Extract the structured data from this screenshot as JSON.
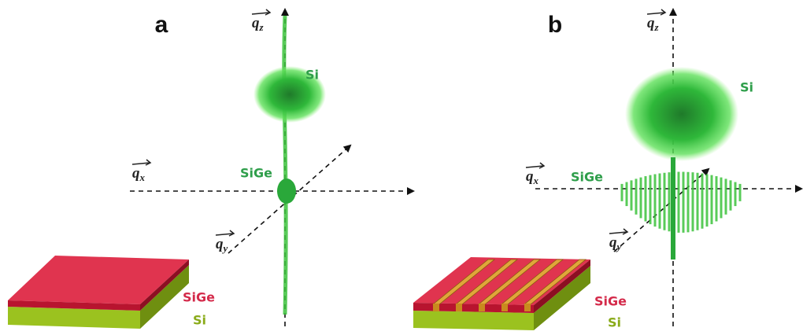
{
  "panels": [
    {
      "label": "a",
      "axes": {
        "qz": {
          "base": "q",
          "sub": "z"
        },
        "qx": {
          "base": "q",
          "sub": "x"
        },
        "qy": {
          "base": "q",
          "sub": "y"
        }
      },
      "peaks": [
        "Si",
        "SiGe"
      ],
      "layers": [
        "SiGe",
        "Si"
      ]
    },
    {
      "label": "b",
      "axes": {
        "qz": {
          "base": "q",
          "sub": "z"
        },
        "qx": {
          "base": "q",
          "sub": "x"
        },
        "qy": {
          "base": "q",
          "sub": "y"
        }
      },
      "peaks": [
        "Si",
        "SiGe"
      ],
      "layers": [
        "SiGe",
        "Si"
      ]
    }
  ]
}
